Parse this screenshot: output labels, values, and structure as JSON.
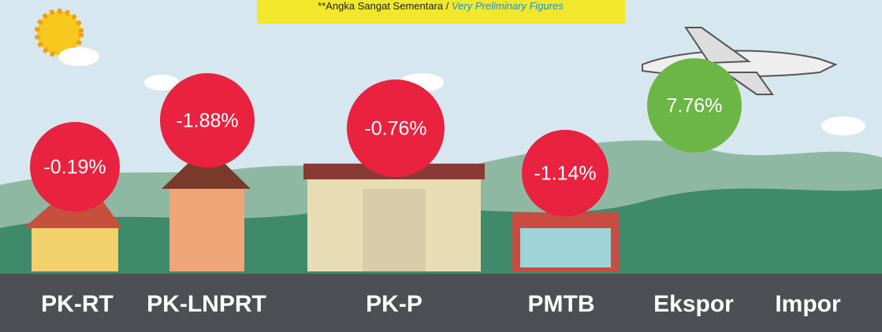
{
  "note": {
    "text": "**Angka Sangat Sementara / ",
    "emphasis": "Very Preliminary Figures"
  },
  "items": [
    {
      "label": "PK-RT",
      "value": "-0.19%"
    },
    {
      "label": "PK-LNPRT",
      "value": "-1.88%"
    },
    {
      "label": "PK-P",
      "value": "-0.76%"
    },
    {
      "label": "PMTB",
      "value": "-1.14%"
    },
    {
      "label": "Ekspor",
      "value": "7.76%"
    },
    {
      "label": "Impor"
    }
  ]
}
